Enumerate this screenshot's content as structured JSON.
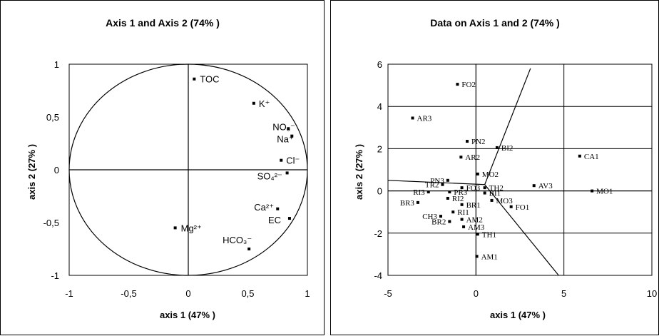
{
  "chart_data": [
    {
      "type": "scatter",
      "title": "Axis 1 and Axis 2 (74% )",
      "xlabel": "axis 1 (47% )",
      "ylabel": "axis 2 (27% )",
      "xlim": [
        -1,
        1
      ],
      "ylim": [
        -1,
        1
      ],
      "xticks": [
        "-1",
        "-0,5",
        "0",
        "0,5",
        "1"
      ],
      "yticks": [
        "1",
        "0,5",
        "0",
        "-0,5",
        "-1"
      ],
      "grid": true,
      "correlation_circle": true,
      "points": [
        {
          "label": "TOC",
          "x": 0.05,
          "y": 0.86
        },
        {
          "label": "K⁺",
          "x": 0.55,
          "y": 0.63
        },
        {
          "label": "NO₃⁻",
          "x": 0.84,
          "y": 0.39
        },
        {
          "label": "Na⁺",
          "x": 0.87,
          "y": 0.32
        },
        {
          "label": "Cl⁻",
          "x": 0.78,
          "y": 0.09
        },
        {
          "label": "SO₄²⁻",
          "x": 0.83,
          "y": -0.03
        },
        {
          "label": "Ca²⁺",
          "x": 0.75,
          "y": -0.37
        },
        {
          "label": "EC",
          "x": 0.85,
          "y": -0.46
        },
        {
          "label": "Mg²⁺",
          "x": -0.11,
          "y": -0.55
        },
        {
          "label": "HCO₃⁻",
          "x": 0.51,
          "y": -0.75
        }
      ]
    },
    {
      "type": "scatter",
      "title": "Data on Axis 1 and 2 (74% )",
      "xlabel": "axis 1 (47% )",
      "ylabel": "axis 2 (27% )",
      "xlim": [
        -5,
        10
      ],
      "ylim": [
        -4,
        6
      ],
      "xticks": [
        "-5",
        "0",
        "5",
        "10"
      ],
      "yticks": [
        "6",
        "4",
        "2",
        "0",
        "-2",
        "-4"
      ],
      "grid": true,
      "points": [
        {
          "label": "FO2",
          "x": -1.05,
          "y": 5.05
        },
        {
          "label": "AR3",
          "x": -3.6,
          "y": 3.45
        },
        {
          "label": "PN2",
          "x": -0.5,
          "y": 2.35
        },
        {
          "label": "BI2",
          "x": 1.2,
          "y": 2.05
        },
        {
          "label": "AR2",
          "x": -0.85,
          "y": 1.6
        },
        {
          "label": "CA1",
          "x": 5.9,
          "y": 1.65
        },
        {
          "label": "MO2",
          "x": 0.1,
          "y": 0.8
        },
        {
          "label": "PN3",
          "x": -1.6,
          "y": 0.5
        },
        {
          "label": "TR2",
          "x": -1.9,
          "y": 0.3
        },
        {
          "label": "FO3",
          "x": -0.8,
          "y": 0.15
        },
        {
          "label": "TH2",
          "x": 0.5,
          "y": 0.15
        },
        {
          "label": "AV3",
          "x": 3.3,
          "y": 0.25
        },
        {
          "label": "MO1",
          "x": 6.6,
          "y": 0.0
        },
        {
          "label": "RI3",
          "x": -2.7,
          "y": -0.05
        },
        {
          "label": "PR3",
          "x": -1.5,
          "y": -0.05
        },
        {
          "label": "BI1",
          "x": 0.5,
          "y": -0.1
        },
        {
          "label": "MO3",
          "x": 0.9,
          "y": -0.45
        },
        {
          "label": "FO1",
          "x": 2.0,
          "y": -0.75
        },
        {
          "label": "BR3",
          "x": -3.3,
          "y": -0.55
        },
        {
          "label": "RI2",
          "x": -1.6,
          "y": -0.35
        },
        {
          "label": "BR1",
          "x": -0.8,
          "y": -0.65
        },
        {
          "label": "RI1",
          "x": -1.3,
          "y": -1.0
        },
        {
          "label": "CH3",
          "x": -2.0,
          "y": -1.2
        },
        {
          "label": "AM2",
          "x": -0.8,
          "y": -1.35
        },
        {
          "label": "BR2",
          "x": -1.5,
          "y": -1.45
        },
        {
          "label": "AM3",
          "x": -0.7,
          "y": -1.7
        },
        {
          "label": "TH1",
          "x": 0.1,
          "y": -2.05
        },
        {
          "label": "AM1",
          "x": 0.05,
          "y": -3.1
        }
      ]
    }
  ]
}
